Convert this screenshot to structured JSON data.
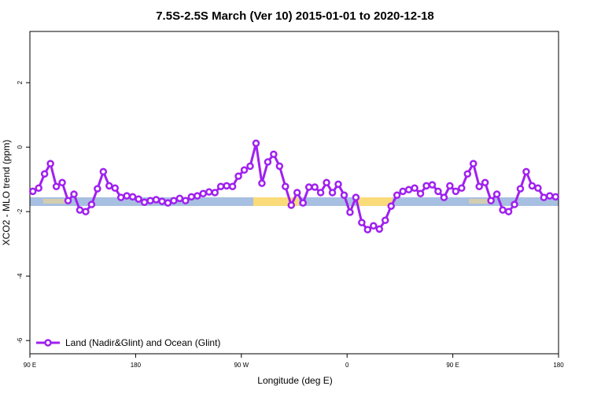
{
  "chart_data": {
    "type": "line",
    "title": "7.5S-2.5S March (Ver 10)   2015-01-01 to 2020-12-18",
    "x_label": "Longitude (deg E)",
    "y_label": "XCO2 - MLO trend (ppm)",
    "xlim": [
      90,
      540
    ],
    "ylim": [
      -6.41,
      3.59
    ],
    "xticks": [
      {
        "value": 90,
        "label": "90 E"
      },
      180,
      {
        "value": 270,
        "label": "90 W"
      },
      {
        "value": 360,
        "label": "0"
      },
      {
        "value": 450,
        "label": "90 E"
      },
      {
        "value": 540,
        "label": "180"
      }
    ],
    "yticks": [
      -6,
      -4,
      -2,
      0,
      2
    ],
    "legend": "bottom-left",
    "series": [
      {
        "name": "Land (Nadir&Glint) and Ocean (Glint)",
        "color": "#a020f0",
        "x": [
          92.5,
          97.5,
          102.5,
          107.5,
          112.5,
          117.5,
          122.5,
          127.5,
          132.5,
          137.5,
          142.5,
          147.5,
          152.5,
          157.5,
          162.5,
          167.5,
          172.5,
          177.5,
          182.5,
          187.5,
          192.5,
          197.5,
          202.5,
          207.5,
          212.5,
          217.5,
          222.5,
          227.5,
          232.5,
          237.5,
          242.5,
          247.5,
          252.5,
          257.5,
          262.5,
          267.5,
          272.5,
          277.5,
          282.5,
          287.5,
          292.5,
          297.5,
          302.5,
          307.5,
          312.5,
          317.5,
          322.5,
          327.5,
          332.5,
          337.5,
          342.5,
          347.5,
          352.5,
          357.5,
          362.5,
          367.5,
          372.5,
          377.5,
          382.5,
          387.5,
          392.5,
          397.5,
          402.5,
          407.5,
          412.5,
          417.5,
          422.5,
          427.5,
          432.5,
          437.5,
          442.5,
          447.5,
          452.5,
          457.5,
          462.5,
          467.5,
          472.5,
          477.5,
          482.5,
          487.5,
          492.5,
          497.5,
          502.5,
          507.5,
          512.5,
          517.5,
          522.5,
          527.5,
          532.5,
          537.5
        ],
        "values": [
          -1.37,
          -1.27,
          -0.83,
          -0.51,
          -1.22,
          -1.1,
          -1.66,
          -1.46,
          -1.95,
          -2.0,
          -1.78,
          -1.29,
          -0.76,
          -1.2,
          -1.27,
          -1.56,
          -1.51,
          -1.54,
          -1.61,
          -1.71,
          -1.66,
          -1.63,
          -1.68,
          -1.73,
          -1.66,
          -1.59,
          -1.66,
          -1.54,
          -1.51,
          -1.44,
          -1.39,
          -1.41,
          -1.22,
          -1.2,
          -1.22,
          -0.9,
          -0.71,
          -0.59,
          0.12,
          -1.12,
          -0.46,
          -0.22,
          -0.59,
          -1.22,
          -1.8,
          -1.41,
          -1.73,
          -1.24,
          -1.24,
          -1.41,
          -1.1,
          -1.41,
          -1.15,
          -1.49,
          -2.02,
          -1.56,
          -2.34,
          -2.56,
          -2.44,
          -2.54,
          -2.27,
          -1.83,
          -1.49,
          -1.37,
          -1.32,
          -1.27,
          -1.44,
          -1.2,
          -1.17,
          -1.37,
          -1.56,
          -1.2,
          -1.37,
          -1.27,
          -0.83,
          -0.51,
          -1.22,
          -1.1,
          -1.66,
          -1.46,
          -1.95,
          -2.0,
          -1.78,
          -1.29,
          -0.76,
          -1.2,
          -1.27,
          -1.56,
          -1.51,
          -1.54
        ]
      }
    ]
  }
}
